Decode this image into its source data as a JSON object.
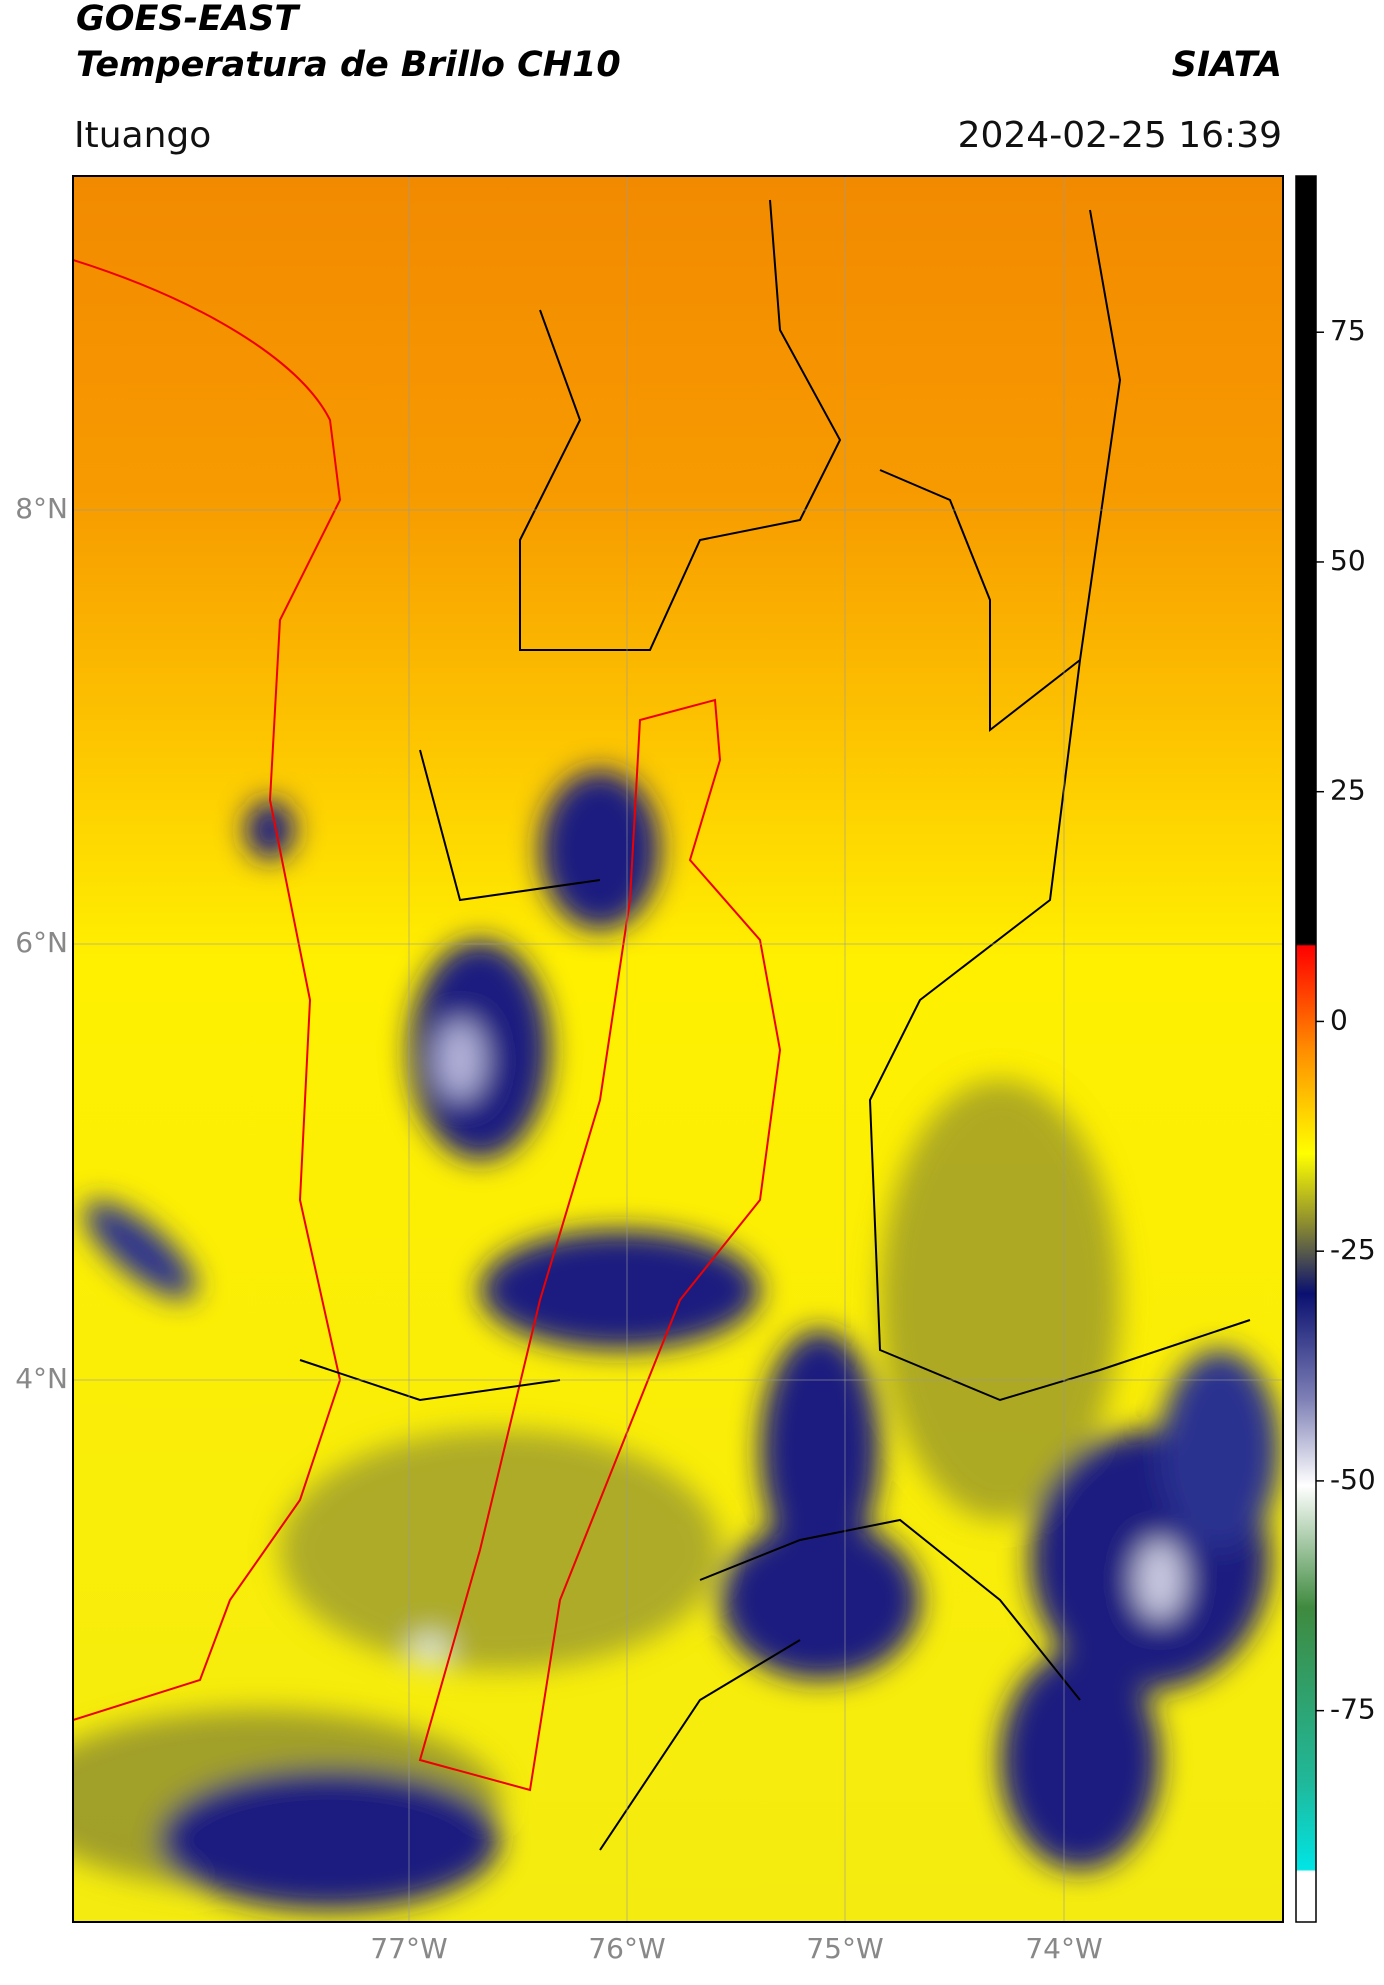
{
  "header": {
    "title": "GOES-EAST",
    "subtitle": "Temperatura de Brillo CH10",
    "source": "SIATA",
    "region": "Ituango",
    "timestamp": "2024-02-25 16:39"
  },
  "map": {
    "lat_labels": [
      "8°N",
      "6°N",
      "4°N"
    ],
    "lon_labels": [
      "77°W",
      "76°W",
      "75°W",
      "74°W"
    ]
  },
  "colorbar": {
    "lim": [
      -98,
      92
    ],
    "ticks": [
      75,
      50,
      25,
      0,
      -25,
      -50,
      -75
    ]
  }
}
